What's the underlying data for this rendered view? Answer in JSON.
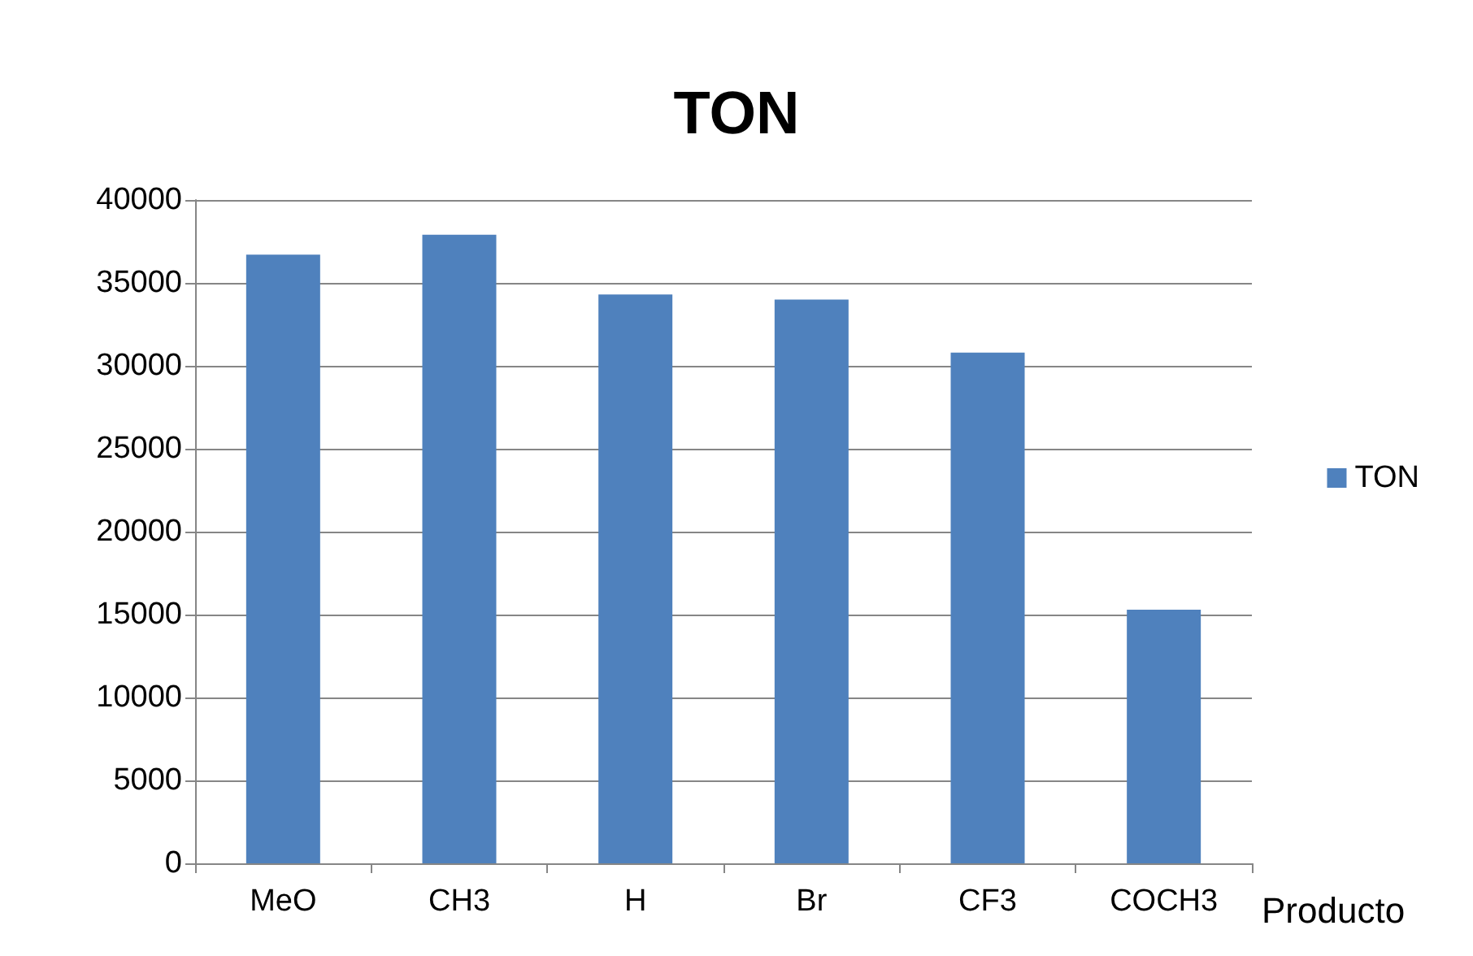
{
  "chart_data": {
    "type": "bar",
    "title": "TON",
    "xlabel": "Producto",
    "categories": [
      "MeO",
      "CH3",
      "H",
      "Br",
      "CF3",
      "COCH3"
    ],
    "series": [
      {
        "name": "TON",
        "color": "#4f81bd",
        "values": [
          36700,
          37900,
          34300,
          34000,
          30800,
          15300
        ]
      }
    ],
    "ylim": [
      0,
      40000
    ],
    "yticks": [
      0,
      5000,
      10000,
      15000,
      20000,
      25000,
      30000,
      35000,
      40000
    ],
    "grid": "y",
    "legend": "right"
  }
}
